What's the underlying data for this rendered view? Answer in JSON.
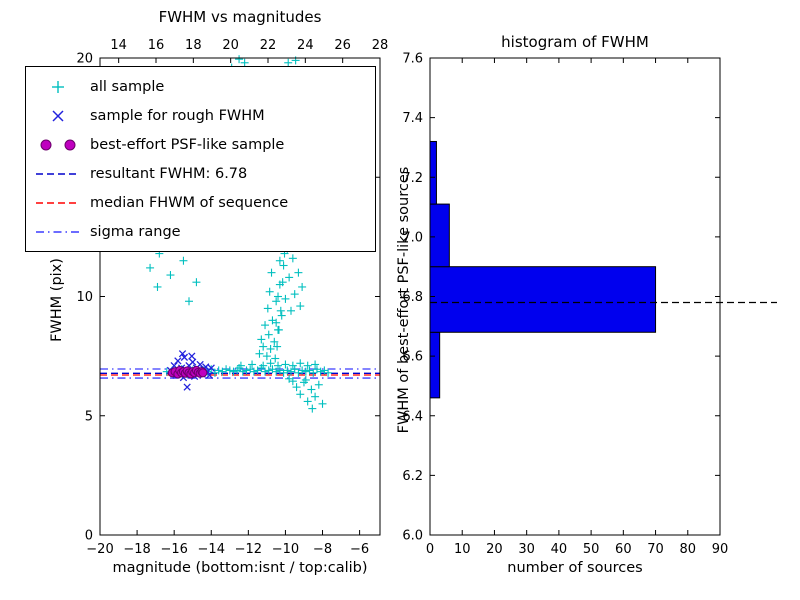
{
  "chart_data": [
    {
      "type": "scatter",
      "title": "FWHM vs magnitudes",
      "xlabel": "magnitude (bottom:isnt / top:calib)",
      "ylabel": "FWHM (pix)",
      "xlim": [
        -20,
        -4.9
      ],
      "ylim": [
        0,
        20
      ],
      "top_xlim": [
        13,
        28
      ],
      "xtick_vals": [
        -20,
        -18,
        -16,
        -14,
        -12,
        -10,
        -8,
        -6
      ],
      "xtick_labels": [
        "−20",
        "−18",
        "−16",
        "−14",
        "−12",
        "−10",
        "−8",
        "−6"
      ],
      "ytick_vals": [
        0,
        5,
        10,
        15,
        20
      ],
      "ytick_labels": [
        "0",
        "5",
        "10",
        "15",
        "20"
      ],
      "top_xtick_vals": [
        14,
        16,
        18,
        20,
        22,
        24,
        26,
        28
      ],
      "top_xtick_labels": [
        "14",
        "16",
        "18",
        "20",
        "22",
        "24",
        "26",
        "28"
      ],
      "hlines": [
        {
          "name": "sigma-upper",
          "y": 6.96,
          "color": "#3b3bff",
          "style": "dashdot"
        },
        {
          "name": "resultant-fwhm",
          "y": 6.78,
          "color": "#0000cc",
          "style": "dashed"
        },
        {
          "name": "median-fwhm",
          "y": 6.71,
          "color": "#ff0000",
          "style": "dashed"
        },
        {
          "name": "sigma-lower",
          "y": 6.58,
          "color": "#3b3bff",
          "style": "dashdot"
        }
      ],
      "series": [
        {
          "name": "all sample",
          "marker": "plus",
          "color": "#00bfbf",
          "points": [
            [
              -16.4,
              6.85
            ],
            [
              -16.1,
              6.9
            ],
            [
              -15.8,
              6.8
            ],
            [
              -15.6,
              6.95
            ],
            [
              -15.3,
              6.75
            ],
            [
              -15.0,
              6.9
            ],
            [
              -14.8,
              6.85
            ],
            [
              -14.6,
              6.8
            ],
            [
              -14.4,
              6.9
            ],
            [
              -14.2,
              6.85
            ],
            [
              -14.0,
              6.95
            ],
            [
              -13.8,
              6.8
            ],
            [
              -13.6,
              6.9
            ],
            [
              -13.4,
              6.85
            ],
            [
              -13.2,
              6.95
            ],
            [
              -13.0,
              6.9
            ],
            [
              -12.8,
              6.85
            ],
            [
              -12.6,
              6.9
            ],
            [
              -12.5,
              7.0
            ],
            [
              -12.3,
              6.85
            ],
            [
              -12.1,
              6.9
            ],
            [
              -11.9,
              6.95
            ],
            [
              -11.7,
              6.85
            ],
            [
              -11.5,
              6.9
            ],
            [
              -11.3,
              7.0
            ],
            [
              -11.1,
              6.85
            ],
            [
              -10.9,
              6.9
            ],
            [
              -10.7,
              6.95
            ],
            [
              -10.5,
              6.85
            ],
            [
              -10.3,
              6.9
            ],
            [
              -10.1,
              6.8
            ],
            [
              -9.9,
              6.9
            ],
            [
              -9.7,
              6.85
            ],
            [
              -9.5,
              6.95
            ],
            [
              -9.3,
              6.8
            ],
            [
              -9.1,
              6.9
            ],
            [
              -8.9,
              6.85
            ],
            [
              -8.7,
              6.9
            ],
            [
              -8.5,
              6.8
            ],
            [
              -8.3,
              6.95
            ],
            [
              -8.1,
              6.85
            ],
            [
              -7.9,
              6.9
            ],
            [
              -7.7,
              6.8
            ],
            [
              -12.4,
              7.1
            ],
            [
              -11.8,
              7.15
            ],
            [
              -11.2,
              7.1
            ],
            [
              -10.8,
              7.2
            ],
            [
              -10.4,
              7.1
            ],
            [
              -10.0,
              7.15
            ],
            [
              -9.6,
              7.1
            ],
            [
              -9.2,
              7.2
            ],
            [
              -8.8,
              7.1
            ],
            [
              -8.4,
              7.15
            ],
            [
              -11.4,
              7.6
            ],
            [
              -11.3,
              8.2
            ],
            [
              -11.2,
              7.9
            ],
            [
              -11.1,
              8.8
            ],
            [
              -11.0,
              7.5
            ],
            [
              -10.95,
              9.5
            ],
            [
              -10.9,
              8.4
            ],
            [
              -10.85,
              10.2
            ],
            [
              -10.8,
              7.8
            ],
            [
              -10.75,
              11.0
            ],
            [
              -10.7,
              9.0
            ],
            [
              -10.65,
              12.1
            ],
            [
              -10.6,
              8.1
            ],
            [
              -10.55,
              13.0
            ],
            [
              -10.5,
              9.8
            ],
            [
              -10.45,
              14.2
            ],
            [
              -10.4,
              8.6
            ],
            [
              -10.35,
              15.1
            ],
            [
              -10.3,
              10.5
            ],
            [
              -10.25,
              16.0
            ],
            [
              -10.2,
              9.2
            ],
            [
              -10.15,
              17.2
            ],
            [
              -10.1,
              11.3
            ],
            [
              -10.05,
              18.1
            ],
            [
              -10.0,
              9.9
            ],
            [
              -9.95,
              19.0
            ],
            [
              -9.9,
              12.0
            ],
            [
              -9.85,
              19.8
            ],
            [
              -9.8,
              10.8
            ],
            [
              -9.75,
              13.5
            ],
            [
              -9.7,
              9.4
            ],
            [
              -9.65,
              14.8
            ],
            [
              -9.6,
              11.6
            ],
            [
              -9.55,
              16.5
            ],
            [
              -9.5,
              10.1
            ],
            [
              -9.45,
              18.0
            ],
            [
              -9.4,
              12.8
            ],
            [
              -9.35,
              19.5
            ],
            [
              -9.3,
              11.0
            ],
            [
              -9.25,
              15.5
            ],
            [
              -9.2,
              9.6
            ],
            [
              -9.15,
              13.2
            ],
            [
              -9.1,
              10.4
            ],
            [
              -9.05,
              17.0
            ],
            [
              -9.0,
              12.5
            ],
            [
              -10.55,
              7.4
            ],
            [
              -10.45,
              7.9
            ],
            [
              -10.35,
              8.6
            ],
            [
              -10.25,
              9.4
            ],
            [
              -10.15,
              10.6
            ],
            [
              -10.05,
              11.8
            ],
            [
              -9.95,
              13.1
            ],
            [
              -9.85,
              14.4
            ],
            [
              -9.75,
              15.8
            ],
            [
              -9.65,
              17.3
            ],
            [
              -9.55,
              18.6
            ],
            [
              -9.45,
              19.9
            ],
            [
              -10.5,
              8.9
            ],
            [
              -10.4,
              10.0
            ],
            [
              -10.3,
              11.5
            ],
            [
              -10.2,
              12.9
            ],
            [
              -10.1,
              14.6
            ],
            [
              -10.0,
              16.2
            ],
            [
              -9.9,
              17.8
            ],
            [
              -9.8,
              19.2
            ],
            [
              -12.9,
              19.6
            ],
            [
              -12.7,
              18.9
            ],
            [
              -12.2,
              19.8
            ],
            [
              -12.0,
              17.5
            ],
            [
              -11.8,
              16.0
            ],
            [
              -11.6,
              19.2
            ],
            [
              -12.5,
              19.95
            ],
            [
              -11.9,
              18.3
            ],
            [
              -17.3,
              11.2
            ],
            [
              -17.0,
              12.5
            ],
            [
              -16.8,
              11.8
            ],
            [
              -16.5,
              13.0
            ],
            [
              -16.2,
              10.9
            ],
            [
              -15.9,
              12.2
            ],
            [
              -15.5,
              11.5
            ],
            [
              -16.9,
              10.4
            ],
            [
              -15.2,
              9.8
            ],
            [
              -14.8,
              10.6
            ],
            [
              -9.4,
              6.2
            ],
            [
              -9.2,
              5.9
            ],
            [
              -9.0,
              6.4
            ],
            [
              -8.8,
              5.6
            ],
            [
              -8.6,
              6.1
            ],
            [
              -8.4,
              5.8
            ],
            [
              -8.2,
              6.3
            ],
            [
              -8.0,
              5.5
            ],
            [
              -8.9,
              6.5
            ],
            [
              -9.6,
              6.45
            ],
            [
              -8.55,
              5.3
            ],
            [
              -9.8,
              6.55
            ]
          ]
        },
        {
          "name": "sample for rough FWHM",
          "marker": "x",
          "color": "#2222dd",
          "points": [
            [
              -16.2,
              6.9
            ],
            [
              -16.0,
              7.1
            ],
            [
              -15.9,
              6.7
            ],
            [
              -15.8,
              7.3
            ],
            [
              -15.7,
              6.85
            ],
            [
              -15.6,
              7.0
            ],
            [
              -15.5,
              6.6
            ],
            [
              -15.45,
              7.45
            ],
            [
              -15.4,
              6.95
            ],
            [
              -15.3,
              6.2
            ],
            [
              -15.2,
              7.1
            ],
            [
              -15.1,
              6.8
            ],
            [
              -15.0,
              7.25
            ],
            [
              -14.9,
              6.65
            ],
            [
              -14.8,
              7.0
            ],
            [
              -14.7,
              6.9
            ],
            [
              -14.6,
              7.15
            ],
            [
              -14.5,
              6.75
            ],
            [
              -14.4,
              6.95
            ],
            [
              -14.3,
              7.05
            ],
            [
              -14.2,
              6.85
            ],
            [
              -14.1,
              6.7
            ],
            [
              -14.0,
              7.0
            ],
            [
              -15.05,
              7.5
            ],
            [
              -15.55,
              7.6
            ]
          ]
        },
        {
          "name": "best-effort PSF-like sample",
          "marker": "circle",
          "color": "#bf00bf",
          "edge": "#6a006a",
          "points": [
            [
              -16.1,
              6.8
            ],
            [
              -15.95,
              6.85
            ],
            [
              -15.8,
              6.75
            ],
            [
              -15.7,
              6.9
            ],
            [
              -15.6,
              6.8
            ],
            [
              -15.5,
              6.85
            ],
            [
              -15.4,
              6.78
            ],
            [
              -15.3,
              6.88
            ],
            [
              -15.2,
              6.8
            ],
            [
              -15.1,
              6.75
            ],
            [
              -15.0,
              6.85
            ],
            [
              -14.9,
              6.8
            ],
            [
              -14.8,
              6.9
            ],
            [
              -14.7,
              6.82
            ],
            [
              -14.6,
              6.78
            ],
            [
              -14.5,
              6.85
            ],
            [
              -14.45,
              6.8
            ]
          ]
        }
      ],
      "legend": {
        "items": [
          {
            "label": "all sample"
          },
          {
            "label": "sample for rough FWHM"
          },
          {
            "label": "best-effort PSF-like sample"
          },
          {
            "label": "resultant FWHM: 6.78"
          },
          {
            "label": "median FHWM of sequence"
          },
          {
            "label": "sigma range"
          }
        ]
      }
    },
    {
      "type": "barh",
      "title": "histogram of FWHM",
      "xlabel": "number of sources",
      "ylabel": "FWHM of best-effort PSF-like sources",
      "xlim": [
        0,
        90
      ],
      "ylim": [
        6.0,
        7.6
      ],
      "xtick_vals": [
        0,
        10,
        20,
        30,
        40,
        50,
        60,
        70,
        80,
        90
      ],
      "xtick_labels": [
        "0",
        "10",
        "20",
        "30",
        "40",
        "50",
        "60",
        "70",
        "80",
        "90"
      ],
      "ytick_vals": [
        6.0,
        6.2,
        6.4,
        6.6,
        6.8,
        7.0,
        7.2,
        7.4,
        7.6
      ],
      "ytick_labels": [
        "6.0",
        "6.2",
        "6.4",
        "6.6",
        "6.8",
        "7.0",
        "7.2",
        "7.4",
        "7.6"
      ],
      "bar_color": "#0000ee",
      "bar_edge": "#000000",
      "bars": [
        {
          "y0": 6.46,
          "y1": 6.68,
          "value": 3
        },
        {
          "y0": 6.68,
          "y1": 6.9,
          "value": 70
        },
        {
          "y0": 6.9,
          "y1": 7.11,
          "value": 6
        },
        {
          "y0": 7.11,
          "y1": 7.32,
          "value": 2
        }
      ],
      "median_line": {
        "y": 6.78,
        "color": "#000000",
        "style": "dashed"
      }
    }
  ]
}
